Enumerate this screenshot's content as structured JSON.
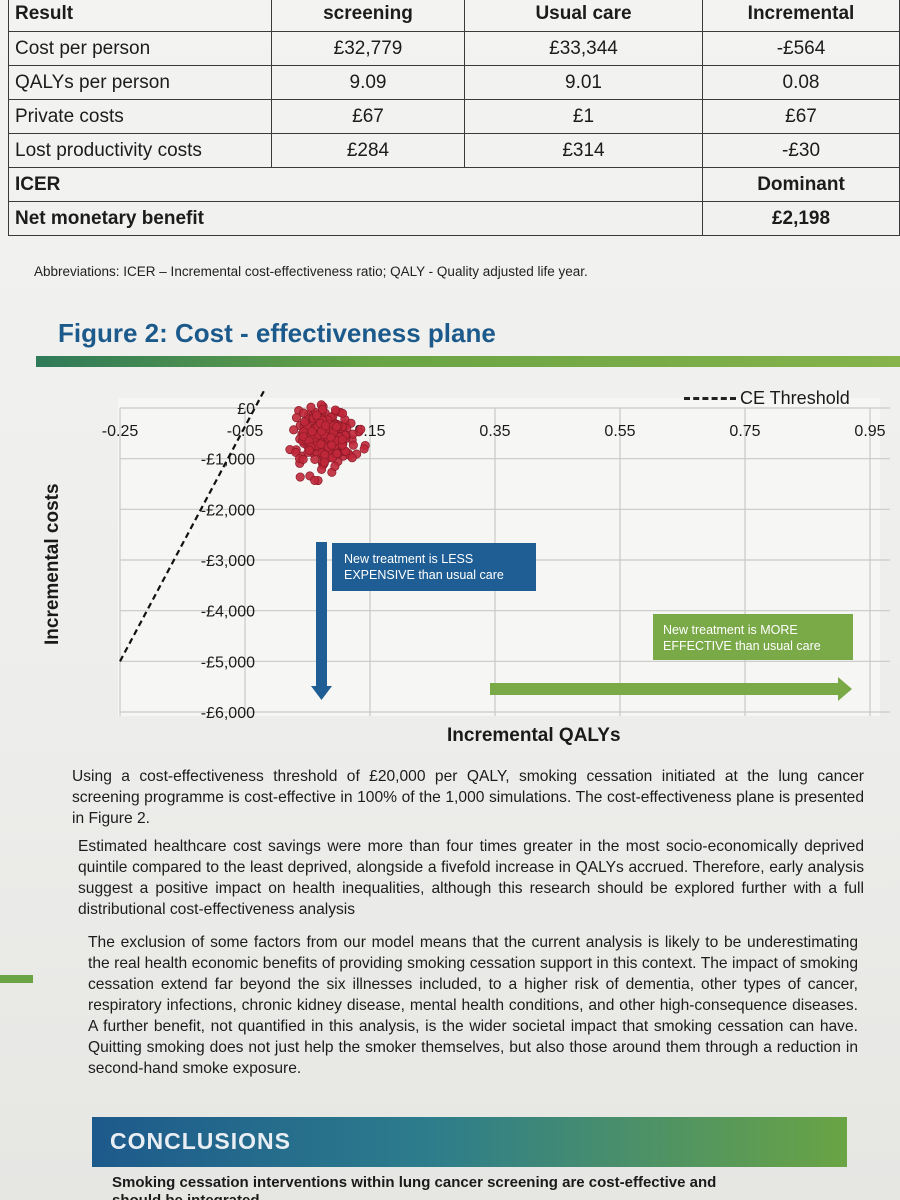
{
  "table": {
    "header": [
      "Result",
      "screening",
      "Usual care",
      "Incremental"
    ],
    "rows": [
      {
        "label": "Cost per person",
        "screening": "£32,779",
        "usual": "£33,344",
        "incremental": "-£564"
      },
      {
        "label": "QALYs per person",
        "screening": "9.09",
        "usual": "9.01",
        "incremental": "0.08"
      },
      {
        "label": "Private costs",
        "screening": "£67",
        "usual": "£1",
        "incremental": "£67"
      },
      {
        "label": "Lost productivity costs",
        "screening": "£284",
        "usual": "£314",
        "incremental": "-£30"
      }
    ],
    "icer": {
      "label": "ICER",
      "value": "Dominant"
    },
    "nmb": {
      "label": "Net monetary benefit",
      "value": "£2,198"
    }
  },
  "abbreviations": "Abbreviations: ICER – Incremental cost-effectiveness ratio; QALY - Quality adjusted life year.",
  "figure": {
    "title": "Figure 2: Cost - effectiveness plane",
    "legend_label": "CE Threshold",
    "label_less_expensive": [
      "New treatment is LESS",
      "EXPENSIVE than usual care"
    ],
    "label_more_effective": [
      "New treatment is MORE",
      "EFFECTIVE than usual care"
    ],
    "colors": {
      "points": "#c0283a",
      "blue_arrow": "#1f5e94",
      "green_arrow": "#7aa948"
    }
  },
  "chart_data": {
    "type": "scatter",
    "xlabel": "Incremental QALYs",
    "ylabel": "Incremental costs",
    "x_ticks": [
      -0.25,
      -0.05,
      0.15,
      0.35,
      0.55,
      0.75,
      0.95
    ],
    "x_tick_labels": [
      "-0.25",
      "-0.05",
      "0.15",
      "0.35",
      "0.55",
      "0.75",
      "0.95"
    ],
    "y_ticks": [
      0,
      -1000,
      -2000,
      -3000,
      -4000,
      -5000,
      -6000
    ],
    "y_tick_labels": [
      "£0",
      "-£1,000",
      "-£2,000",
      "-£3,000",
      "-£4,000",
      "-£5,000",
      "-£6,000"
    ],
    "xlim": [
      -0.25,
      0.95
    ],
    "ylim": [
      -6000,
      0
    ],
    "grid": true,
    "legend": "top-right",
    "threshold_line": {
      "x": [
        -0.25,
        -0.03
      ],
      "y": [
        -5000,
        0
      ]
    },
    "simulations": 1000,
    "cloud": {
      "x_mean": 0.08,
      "x_sd": 0.022,
      "y_mean": -564,
      "y_sd": 280,
      "n_drawn": 260
    }
  },
  "paragraphs": [
    "Using a cost-effectiveness threshold of £20,000 per QALY, smoking cessation initiated at the lung cancer screening programme is cost-effective in 100% of the 1,000 simulations. The cost-effectiveness plane is presented in Figure 2.",
    "Estimated healthcare cost savings were more than four times greater in the most socio-economically deprived quintile compared to the least deprived, alongside a fivefold increase in QALYs accrued. Therefore, early analysis suggest a positive impact on health inequalities, although this research should be explored further with a full distributional cost-effectiveness analysis",
    "The exclusion of some factors from our model means that the current analysis is likely to be underestimating the real health economic benefits of providing smoking cessation support in this context. The impact of smoking cessation extend far beyond the six illnesses included, to a higher risk of dementia, other types of cancer, respiratory infections, chronic kidney disease, mental health conditions, and other high-consequence diseases. A further benefit, not quantified in this analysis, is the wider societal impact that smoking cessation can have. Quitting smoking does not just help the smoker themselves, but also those around them through a reduction in second-hand smoke exposure."
  ],
  "conclusions": {
    "title": "CONCLUSIONS",
    "text": "Smoking cessation interventions within lung cancer screening are cost-effective and",
    "text2": "should be integrated"
  }
}
